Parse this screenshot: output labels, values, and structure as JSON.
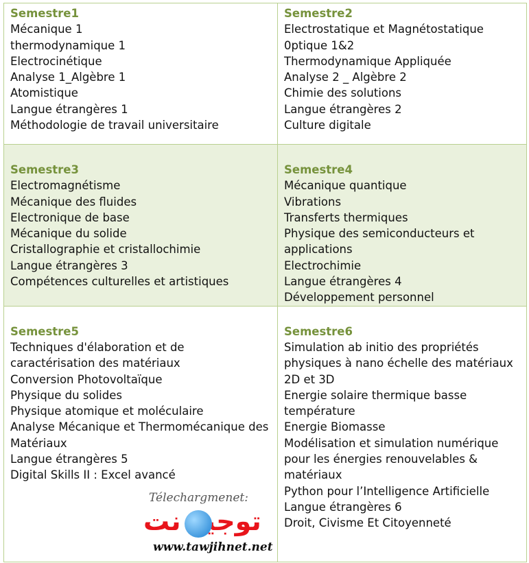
{
  "semesters": [
    {
      "title": "Semestre1",
      "courses": [
        "Mécanique 1",
        "thermodynamique 1",
        "Electrocinétique",
        "Analyse 1_Algèbre 1",
        "Atomistique",
        "Langue étrangères 1",
        "Méthodologie de travail universitaire"
      ]
    },
    {
      "title": "Semestre2",
      "courses": [
        "Electrostatique et Magnétostatique",
        "0ptique 1&2",
        "Thermodynamique Appliquée",
        "Analyse 2 _ Algèbre 2",
        "Chimie des solutions",
        "Langue étrangères 2",
        "Culture digitale"
      ]
    },
    {
      "title": "Semestre3",
      "courses": [
        "Electromagnétisme",
        "Mécanique des fluides",
        "Electronique de base",
        "Mécanique du solide",
        "Cristallographie et cristallochimie",
        "Langue étrangères 3",
        "Compétences culturelles et artistiques"
      ]
    },
    {
      "title": "Semestre4",
      "courses": [
        "Mécanique quantique",
        "Vibrations",
        "Transferts thermiques",
        "Physique des semiconducteurs et applications",
        "Electrochimie",
        "Langue étrangères 4",
        "Développement personnel"
      ]
    },
    {
      "title": "Semestre5",
      "courses": [
        "Techniques d'élaboration et de caractérisation des matériaux",
        "Conversion Photovoltaïque",
        "Physique du solides",
        "Physique atomique et moléculaire",
        "Analyse Mécanique et Thermomécanique des Matériaux",
        "Langue étrangères 5",
        "Digital Skills II : Excel avancé"
      ]
    },
    {
      "title": "Semestre6",
      "courses": [
        "Simulation ab initio des propriétés physiques à nano échelle des matériaux 2D et 3D",
        "Energie solaire thermique basse température",
        "Energie Biomasse",
        "Modélisation et simulation numérique pour les énergies renouvelables & matériaux",
        "Python pour l’Intelligence Artificielle",
        "Langue étrangères 6",
        "Droit, Civisme Et Citoyenneté"
      ]
    }
  ],
  "watermark": {
    "caption": "Télechargmenet:",
    "arabic": "توجيه نت",
    "url": "www.tawjihnet.net"
  },
  "colors": {
    "header": "#76923c",
    "border": "#b9d08f",
    "shaded_row": "#eaf1dd"
  }
}
